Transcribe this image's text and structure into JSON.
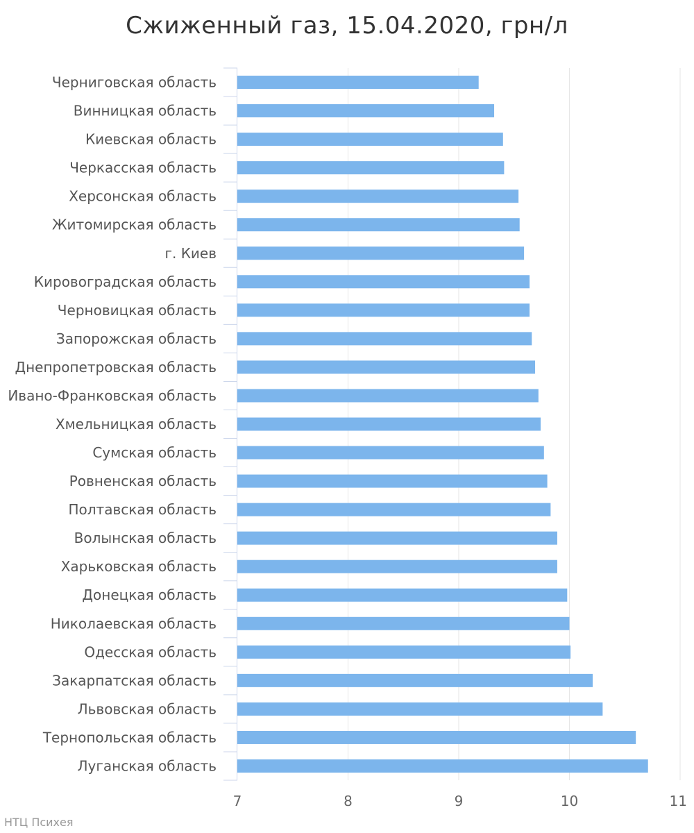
{
  "chart_data": {
    "type": "bar",
    "orientation": "horizontal",
    "title": "Сжиженный газ, 15.04.2020, грн/л",
    "categories": [
      "Черниговская область",
      "Винницкая область",
      "Киевская область",
      "Черкасская область",
      "Херсонская область",
      "Житомирская область",
      "г. Киев",
      "Кировоградская область",
      "Черновицкая область",
      "Запорожская область",
      "Днепропетровская область",
      "Ивано-Франковская область",
      "Хмельницкая область",
      "Сумская область",
      "Ровненская область",
      "Полтавская область",
      "Волынская область",
      "Харьковская область",
      "Донецкая область",
      "Николаевская область",
      "Одесская область",
      "Закарпатская область",
      "Львовская область",
      "Тернопольская область",
      "Луганская область"
    ],
    "values": [
      9.18,
      9.32,
      9.4,
      9.41,
      9.54,
      9.55,
      9.59,
      9.64,
      9.64,
      9.66,
      9.69,
      9.72,
      9.74,
      9.77,
      9.8,
      9.83,
      9.89,
      9.89,
      9.98,
      10.0,
      10.01,
      10.21,
      10.3,
      10.6,
      10.71
    ],
    "xlim": [
      7,
      11
    ],
    "ticks": [
      7,
      8,
      9,
      10,
      11
    ],
    "grid": true,
    "bar_color": "#7cb5ec",
    "legend": "none"
  },
  "credits": "НТЦ Психея"
}
